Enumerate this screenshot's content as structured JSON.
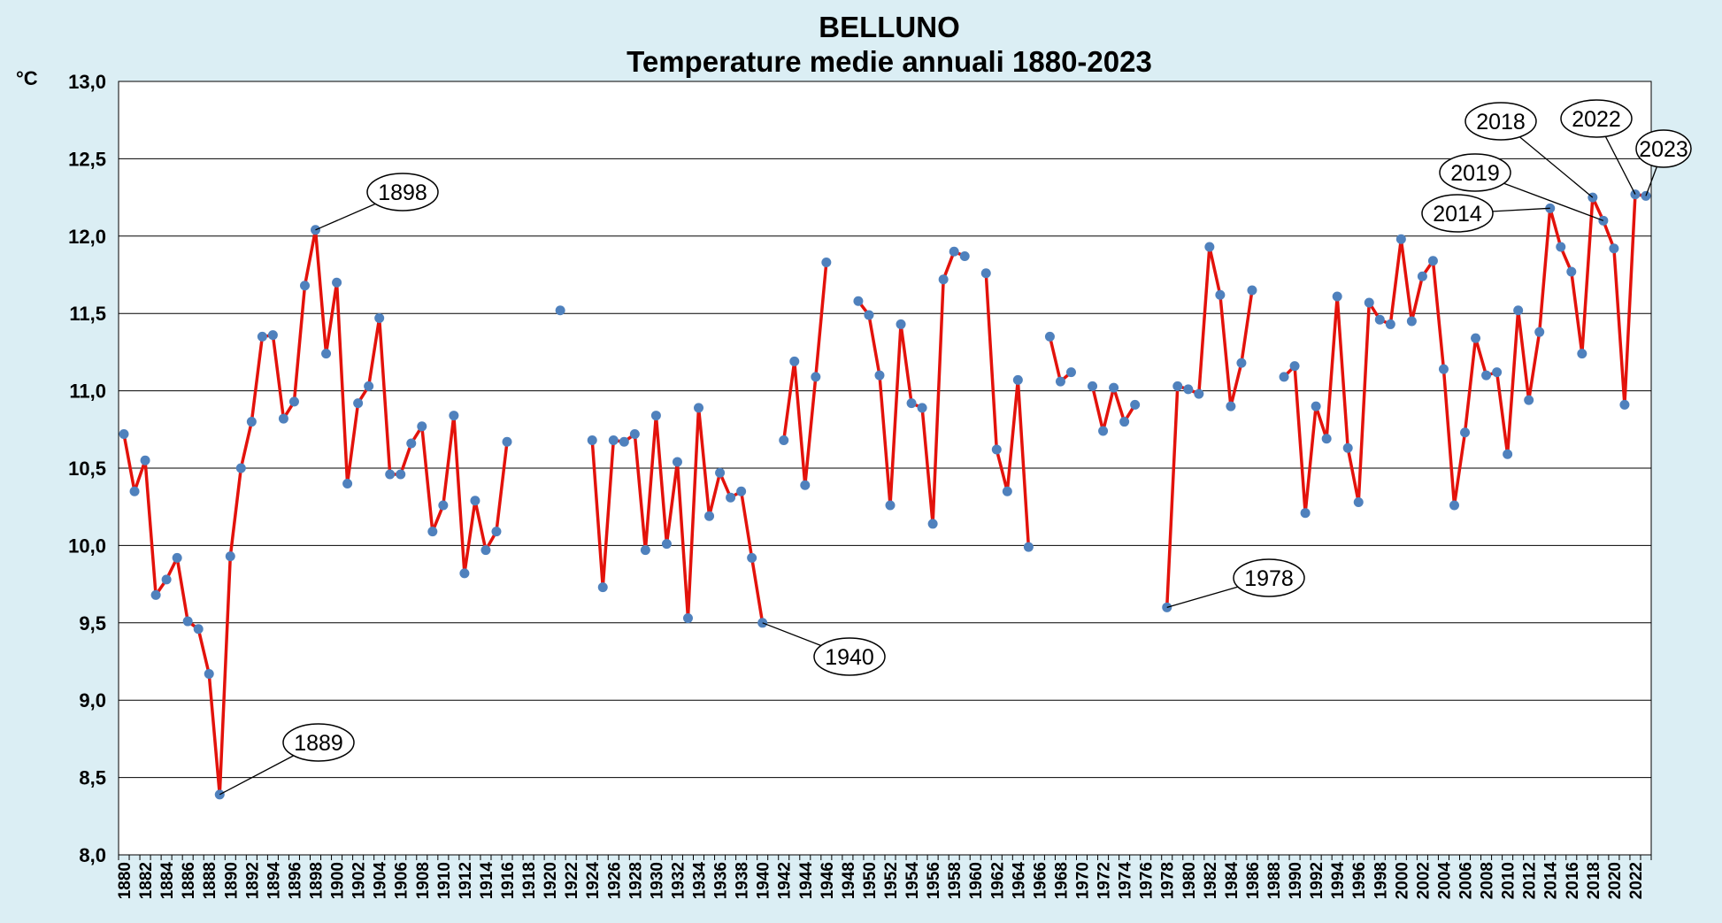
{
  "chart_data": {
    "type": "line",
    "title": "BELLUNO",
    "subtitle": "Temperature medie annuali 1880-2023",
    "ylabel": "°C",
    "xlabel": "",
    "ylim": [
      8.0,
      13.0
    ],
    "xlim": [
      1880,
      2023
    ],
    "y_ticks": [
      "8,0",
      "8,5",
      "9,0",
      "9,5",
      "10,0",
      "10,5",
      "11,0",
      "11,5",
      "12,0",
      "12,5",
      "13,0"
    ],
    "x_ticks": [
      "1880",
      "1882",
      "1884",
      "1886",
      "1888",
      "1890",
      "1892",
      "1894",
      "1896",
      "1898",
      "1900",
      "1902",
      "1904",
      "1906",
      "1908",
      "1910",
      "1912",
      "1914",
      "1916",
      "1918",
      "1920",
      "1922",
      "1924",
      "1926",
      "1928",
      "1930",
      "1932",
      "1934",
      "1936",
      "1938",
      "1940",
      "1942",
      "1944",
      "1946",
      "1948",
      "1950",
      "1952",
      "1954",
      "1956",
      "1958",
      "1960",
      "1962",
      "1964",
      "1966",
      "1968",
      "1970",
      "1972",
      "1974",
      "1976",
      "1978",
      "1980",
      "1982",
      "1984",
      "1986",
      "1988",
      "1990",
      "1992",
      "1994",
      "1996",
      "1998",
      "2000",
      "2002",
      "2004",
      "2006",
      "2008",
      "2010",
      "2012",
      "2014",
      "2016",
      "2018",
      "2020",
      "2022"
    ],
    "grid": true,
    "line_color": "#e3120b",
    "marker_color": "#4f81bd",
    "series": [
      {
        "points": [
          [
            1880,
            10.72
          ],
          [
            1881,
            10.35
          ],
          [
            1882,
            10.55
          ],
          [
            1883,
            9.68
          ],
          [
            1884,
            9.78
          ],
          [
            1885,
            9.92
          ],
          [
            1886,
            9.51
          ],
          [
            1887,
            9.46
          ],
          [
            1888,
            9.17
          ],
          [
            1889,
            8.39
          ],
          [
            1890,
            9.93
          ],
          [
            1891,
            10.5
          ],
          [
            1892,
            10.8
          ],
          [
            1893,
            11.35
          ],
          [
            1894,
            11.36
          ],
          [
            1895,
            10.82
          ],
          [
            1896,
            10.93
          ],
          [
            1897,
            11.68
          ],
          [
            1898,
            12.04
          ],
          [
            1899,
            11.24
          ],
          [
            1900,
            11.7
          ],
          [
            1901,
            10.4
          ],
          [
            1902,
            10.92
          ],
          [
            1903,
            11.03
          ],
          [
            1904,
            11.47
          ],
          [
            1905,
            10.46
          ],
          [
            1906,
            10.46
          ],
          [
            1907,
            10.66
          ],
          [
            1908,
            10.77
          ],
          [
            1909,
            10.09
          ],
          [
            1910,
            10.26
          ],
          [
            1911,
            10.84
          ],
          [
            1912,
            9.82
          ],
          [
            1913,
            10.29
          ],
          [
            1914,
            9.97
          ],
          [
            1915,
            10.09
          ],
          [
            1916,
            10.67
          ],
          [
            1917,
            null
          ],
          [
            1918,
            null
          ],
          [
            1919,
            null
          ],
          [
            1920,
            null
          ],
          [
            1921,
            11.52
          ],
          [
            1922,
            null
          ],
          [
            1923,
            null
          ],
          [
            1924,
            10.68
          ],
          [
            1925,
            9.73
          ],
          [
            1926,
            10.68
          ],
          [
            1927,
            10.67
          ],
          [
            1928,
            10.72
          ],
          [
            1929,
            9.97
          ],
          [
            1930,
            10.84
          ],
          [
            1931,
            10.01
          ],
          [
            1932,
            10.54
          ],
          [
            1933,
            9.53
          ],
          [
            1934,
            10.89
          ],
          [
            1935,
            10.19
          ],
          [
            1936,
            10.47
          ],
          [
            1937,
            10.31
          ],
          [
            1938,
            10.35
          ],
          [
            1939,
            9.92
          ],
          [
            1940,
            9.5
          ],
          [
            1941,
            null
          ],
          [
            1942,
            10.68
          ],
          [
            1943,
            11.19
          ],
          [
            1944,
            10.39
          ],
          [
            1945,
            11.09
          ],
          [
            1946,
            11.83
          ],
          [
            1947,
            null
          ],
          [
            1948,
            null
          ],
          [
            1949,
            11.58
          ],
          [
            1950,
            11.49
          ],
          [
            1951,
            11.1
          ],
          [
            1952,
            10.26
          ],
          [
            1953,
            11.43
          ],
          [
            1954,
            10.92
          ],
          [
            1955,
            10.89
          ],
          [
            1956,
            10.14
          ],
          [
            1957,
            11.72
          ],
          [
            1958,
            11.9
          ],
          [
            1959,
            11.87
          ],
          [
            1960,
            null
          ],
          [
            1961,
            11.76
          ],
          [
            1962,
            10.62
          ],
          [
            1963,
            10.35
          ],
          [
            1964,
            11.07
          ],
          [
            1965,
            9.99
          ],
          [
            1966,
            null
          ],
          [
            1967,
            11.35
          ],
          [
            1968,
            11.06
          ],
          [
            1969,
            11.12
          ],
          [
            1970,
            null
          ],
          [
            1971,
            11.03
          ],
          [
            1972,
            10.74
          ],
          [
            1973,
            11.02
          ],
          [
            1974,
            10.8
          ],
          [
            1975,
            10.91
          ],
          [
            1976,
            null
          ],
          [
            1977,
            null
          ],
          [
            1978,
            9.6
          ],
          [
            1979,
            11.03
          ],
          [
            1980,
            11.01
          ],
          [
            1981,
            10.98
          ],
          [
            1982,
            11.93
          ],
          [
            1983,
            11.62
          ],
          [
            1984,
            10.9
          ],
          [
            1985,
            11.18
          ],
          [
            1986,
            11.65
          ],
          [
            1987,
            null
          ],
          [
            1988,
            null
          ],
          [
            1989,
            11.09
          ],
          [
            1990,
            11.16
          ],
          [
            1991,
            10.21
          ],
          [
            1992,
            10.9
          ],
          [
            1993,
            10.69
          ],
          [
            1994,
            11.61
          ],
          [
            1995,
            10.63
          ],
          [
            1996,
            10.28
          ],
          [
            1997,
            11.57
          ],
          [
            1998,
            11.46
          ],
          [
            1999,
            11.43
          ],
          [
            2000,
            11.98
          ],
          [
            2001,
            11.45
          ],
          [
            2002,
            11.74
          ],
          [
            2003,
            11.84
          ],
          [
            2004,
            11.14
          ],
          [
            2005,
            10.26
          ],
          [
            2006,
            10.73
          ],
          [
            2007,
            11.34
          ],
          [
            2008,
            11.1
          ],
          [
            2009,
            11.12
          ],
          [
            2010,
            10.59
          ],
          [
            2011,
            11.52
          ],
          [
            2012,
            10.94
          ],
          [
            2013,
            11.38
          ],
          [
            2014,
            12.18
          ],
          [
            2015,
            11.93
          ],
          [
            2016,
            11.77
          ],
          [
            2017,
            11.24
          ],
          [
            2018,
            12.25
          ],
          [
            2019,
            12.1
          ],
          [
            2020,
            11.92
          ],
          [
            2021,
            10.91
          ],
          [
            2022,
            12.27
          ],
          [
            2023,
            12.26
          ]
        ]
      }
    ],
    "annotations": [
      {
        "text": "1898",
        "year": 1898
      },
      {
        "text": "1889",
        "year": 1889
      },
      {
        "text": "1940",
        "year": 1940
      },
      {
        "text": "1978",
        "year": 1978
      },
      {
        "text": "2018",
        "year": 2018
      },
      {
        "text": "2022",
        "year": 2022
      },
      {
        "text": "2023",
        "year": 2023
      },
      {
        "text": "2019",
        "year": 2019
      },
      {
        "text": "2014",
        "year": 2014
      }
    ]
  }
}
